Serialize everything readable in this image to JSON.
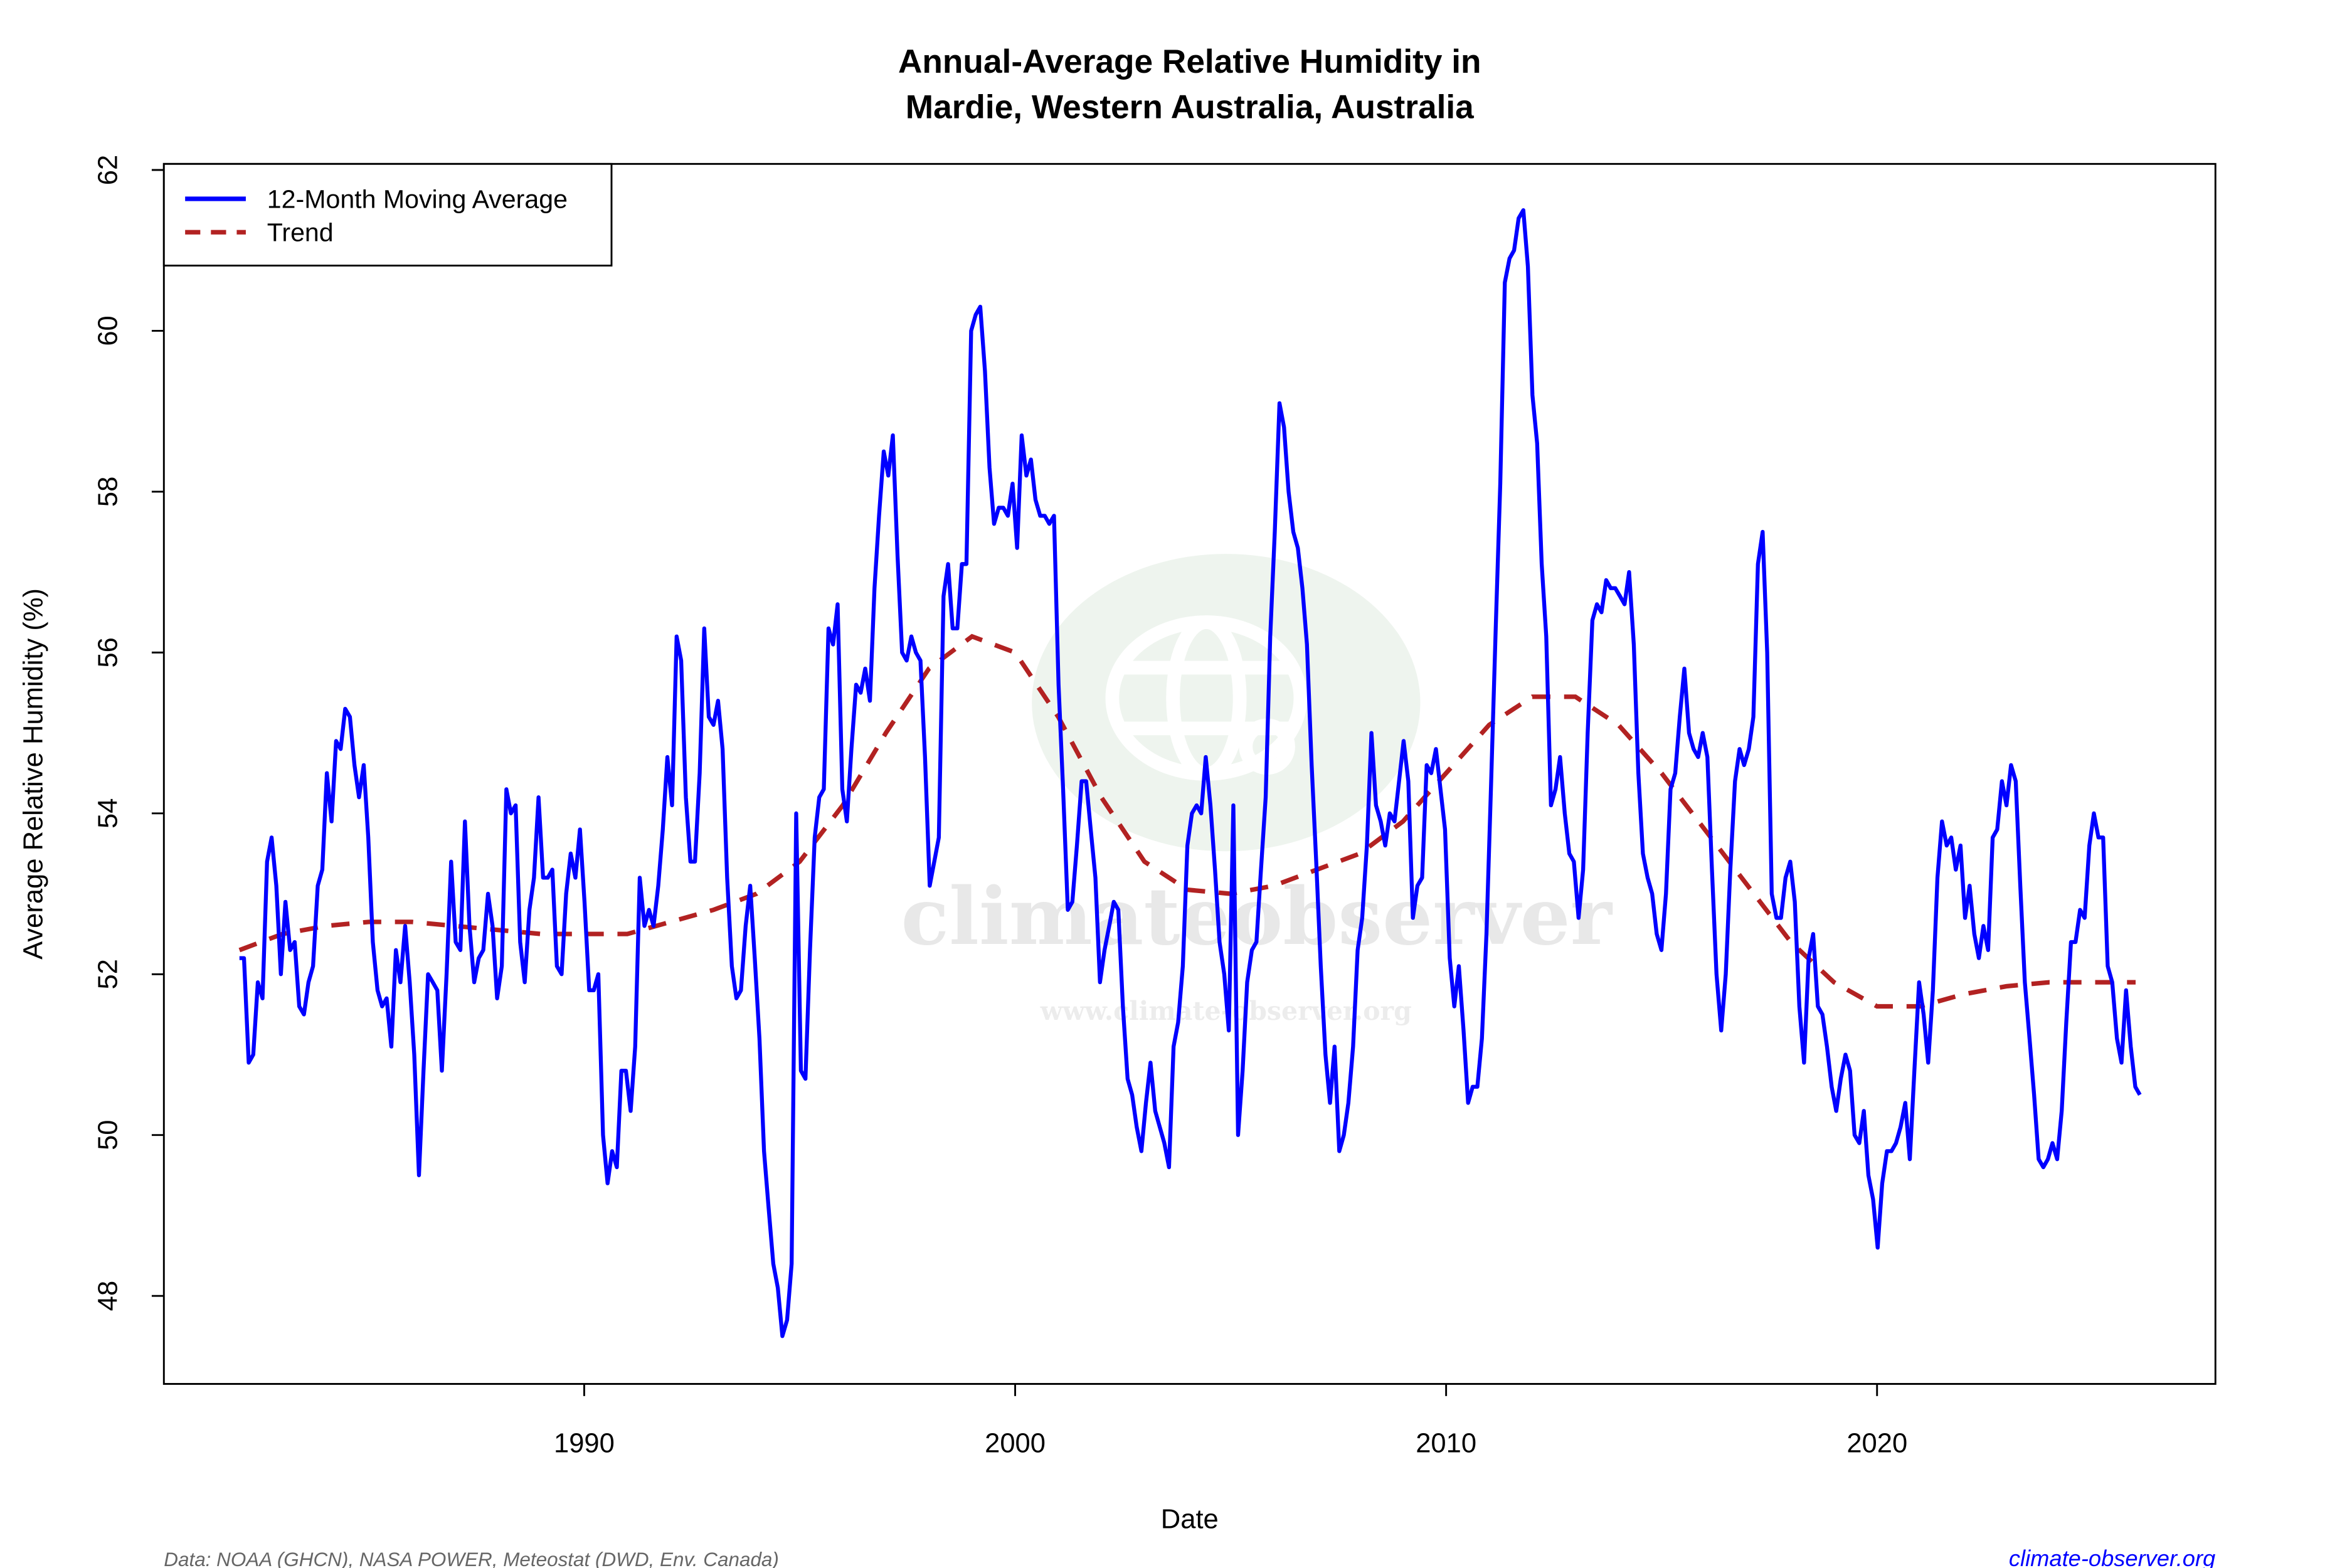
{
  "chart_data": {
    "type": "line",
    "title": "Annual-Average Relative Humidity in\nMardie, Western Australia, Australia",
    "xlabel": "Date",
    "ylabel": "Average Relative Humidity (%)",
    "xlim": [
      1981,
      2027
    ],
    "ylim": [
      47,
      62
    ],
    "x_ticks": [
      1990,
      2000,
      2010,
      2020
    ],
    "y_ticks": [
      48,
      50,
      52,
      54,
      56,
      58,
      60,
      62
    ],
    "grid": false,
    "legend_position": "top-left",
    "series": [
      {
        "name": "12-Month Moving Average",
        "color": "#0000ff",
        "style": "solid",
        "x_range": [
          1982.0,
          2026.1
        ],
        "values": [
          52.2,
          52.2,
          50.9,
          51.0,
          51.9,
          51.7,
          53.4,
          53.7,
          53.1,
          52.0,
          52.9,
          52.3,
          52.4,
          51.6,
          51.5,
          51.9,
          52.1,
          53.1,
          53.3,
          54.5,
          53.9,
          54.9,
          54.8,
          55.3,
          55.2,
          54.6,
          54.2,
          54.6,
          53.7,
          52.4,
          51.8,
          51.6,
          51.7,
          51.1,
          52.3,
          51.9,
          52.6,
          51.9,
          51.0,
          49.5,
          50.8,
          52.0,
          51.9,
          51.8,
          50.8,
          52.0,
          53.4,
          52.4,
          52.3,
          53.9,
          52.6,
          51.9,
          52.2,
          52.3,
          53.0,
          52.6,
          51.7,
          52.1,
          54.3,
          54.0,
          54.1,
          52.4,
          51.9,
          52.8,
          53.2,
          54.2,
          53.2,
          53.2,
          53.3,
          52.1,
          52.0,
          53.0,
          53.5,
          53.2,
          53.8,
          52.9,
          51.8,
          51.8,
          52.0,
          50.0,
          49.4,
          49.8,
          49.6,
          50.8,
          50.8,
          50.3,
          51.1,
          53.2,
          52.6,
          52.8,
          52.6,
          53.1,
          53.8,
          54.7,
          54.1,
          56.2,
          55.9,
          54.2,
          53.4,
          53.4,
          54.5,
          56.3,
          55.2,
          55.1,
          55.4,
          54.8,
          53.2,
          52.1,
          51.7,
          51.8,
          52.6,
          53.1,
          52.2,
          51.2,
          49.8,
          49.1,
          48.4,
          48.1,
          47.5,
          47.7,
          48.4,
          54.0,
          50.8,
          50.7,
          52.3,
          53.7,
          54.2,
          54.3,
          56.3,
          56.1,
          56.6,
          54.3,
          53.9,
          54.8,
          55.6,
          55.5,
          55.8,
          55.4,
          56.8,
          57.7,
          58.5,
          58.2,
          58.7,
          57.2,
          56.0,
          55.9,
          56.2,
          56.0,
          55.9,
          54.7,
          53.1,
          53.4,
          53.7,
          56.7,
          57.1,
          56.3,
          56.3,
          57.1,
          57.1,
          60.0,
          60.2,
          60.3,
          59.5,
          58.3,
          57.6,
          57.8,
          57.8,
          57.7,
          58.1,
          57.3,
          58.7,
          58.2,
          58.4,
          57.9,
          57.7,
          57.7,
          57.6,
          57.7,
          55.6,
          54.3,
          52.8,
          52.9,
          53.6,
          54.4,
          54.4,
          53.8,
          53.2,
          51.9,
          52.3,
          52.6,
          52.9,
          52.8,
          51.6,
          50.7,
          50.5,
          50.1,
          49.8,
          50.4,
          50.9,
          50.3,
          50.1,
          49.9,
          49.6,
          51.1,
          51.4,
          52.1,
          53.6,
          54.0,
          54.1,
          54.0,
          54.7,
          54.1,
          53.3,
          52.4,
          52.0,
          51.3,
          54.1,
          50.0,
          50.8,
          51.9,
          52.3,
          52.4,
          53.3,
          54.2,
          56.2,
          57.5,
          59.1,
          58.8,
          58.0,
          57.5,
          57.3,
          56.8,
          56.1,
          54.6,
          53.4,
          52.1,
          51.0,
          50.4,
          51.1,
          49.8,
          50.0,
          50.4,
          51.1,
          52.3,
          52.7,
          53.6,
          55.0,
          54.1,
          53.9,
          53.6,
          54.0,
          53.9,
          54.4,
          54.9,
          54.4,
          52.7,
          53.1,
          53.2,
          54.6,
          54.5,
          54.8,
          54.3,
          53.8,
          52.2,
          51.6,
          52.1,
          51.3,
          50.4,
          50.6,
          50.6,
          51.2,
          52.5,
          54.4,
          56.3,
          58.1,
          60.6,
          60.9,
          61.0,
          61.4,
          61.5,
          60.8,
          59.2,
          58.6,
          57.1,
          56.2,
          54.1,
          54.3,
          54.7,
          54.0,
          53.5,
          53.4,
          52.7,
          53.3,
          55.0,
          56.4,
          56.6,
          56.5,
          56.9,
          56.8,
          56.8,
          56.7,
          56.6,
          57.0,
          56.1,
          54.5,
          53.5,
          53.2,
          53.0,
          52.5,
          52.3,
          53.0,
          54.3,
          54.5,
          55.2,
          55.8,
          55.0,
          54.8,
          54.7,
          55.0,
          54.7,
          53.3,
          52.0,
          51.3,
          52.0,
          53.3,
          54.4,
          54.8,
          54.6,
          54.8,
          55.2,
          57.1,
          57.5,
          56.0,
          53.0,
          52.7,
          52.7,
          53.2,
          53.4,
          52.9,
          51.6,
          50.9,
          52.2,
          52.5,
          51.6,
          51.5,
          51.1,
          50.6,
          50.3,
          50.7,
          51.0,
          50.8,
          50.0,
          49.9,
          50.3,
          49.5,
          49.2,
          48.6,
          49.4,
          49.8,
          49.8,
          49.9,
          50.1,
          50.4,
          49.7,
          50.8,
          51.9,
          51.5,
          50.9,
          51.8,
          53.2,
          53.9,
          53.6,
          53.7,
          53.3,
          53.6,
          52.7,
          53.1,
          52.5,
          52.2,
          52.6,
          52.3,
          53.7,
          53.8,
          54.4,
          54.1,
          54.6,
          54.4,
          53.1,
          51.9,
          51.2,
          50.5,
          49.7,
          49.6,
          49.7,
          49.9,
          49.7,
          50.3,
          51.4,
          52.4,
          52.4,
          52.8,
          52.7,
          53.6,
          54.0,
          53.7,
          53.7,
          52.1,
          51.9,
          51.2,
          50.9,
          51.8,
          51.1,
          50.6,
          50.5
        ]
      },
      {
        "name": "Trend",
        "color": "#b22222",
        "style": "dashed",
        "x": [
          1982,
          1983,
          1984,
          1985,
          1986,
          1987,
          1988,
          1989,
          1990,
          1991,
          1992,
          1993,
          1994,
          1995,
          1996,
          1997,
          1998,
          1999,
          2000,
          2001,
          2002,
          2003,
          2004,
          2005,
          2006,
          2007,
          2008,
          2009,
          2010,
          2011,
          2012,
          2013,
          2014,
          2015,
          2016,
          2017,
          2018,
          2019,
          2020,
          2021,
          2022,
          2023,
          2024,
          2025,
          2026
        ],
        "values": [
          52.3,
          52.5,
          52.6,
          52.65,
          52.65,
          52.6,
          52.55,
          52.5,
          52.5,
          52.5,
          52.65,
          52.8,
          53.0,
          53.4,
          54.1,
          55.0,
          55.8,
          56.2,
          56.0,
          55.2,
          54.2,
          53.4,
          53.05,
          53.0,
          53.1,
          53.3,
          53.5,
          53.9,
          54.5,
          55.1,
          55.45,
          55.45,
          55.1,
          54.5,
          53.8,
          53.1,
          52.4,
          51.9,
          51.6,
          51.6,
          51.75,
          51.85,
          51.9,
          51.9,
          51.9
        ]
      }
    ]
  },
  "footer": {
    "source": "Data: NOAA (GHCN), NASA POWER, Meteostat (DWD, Env. Canada)",
    "site": "climate-observer.org",
    "site_color": "#0000ff"
  },
  "watermark": {
    "text": "climateobserver",
    "url": "www.climate-observer.org"
  }
}
